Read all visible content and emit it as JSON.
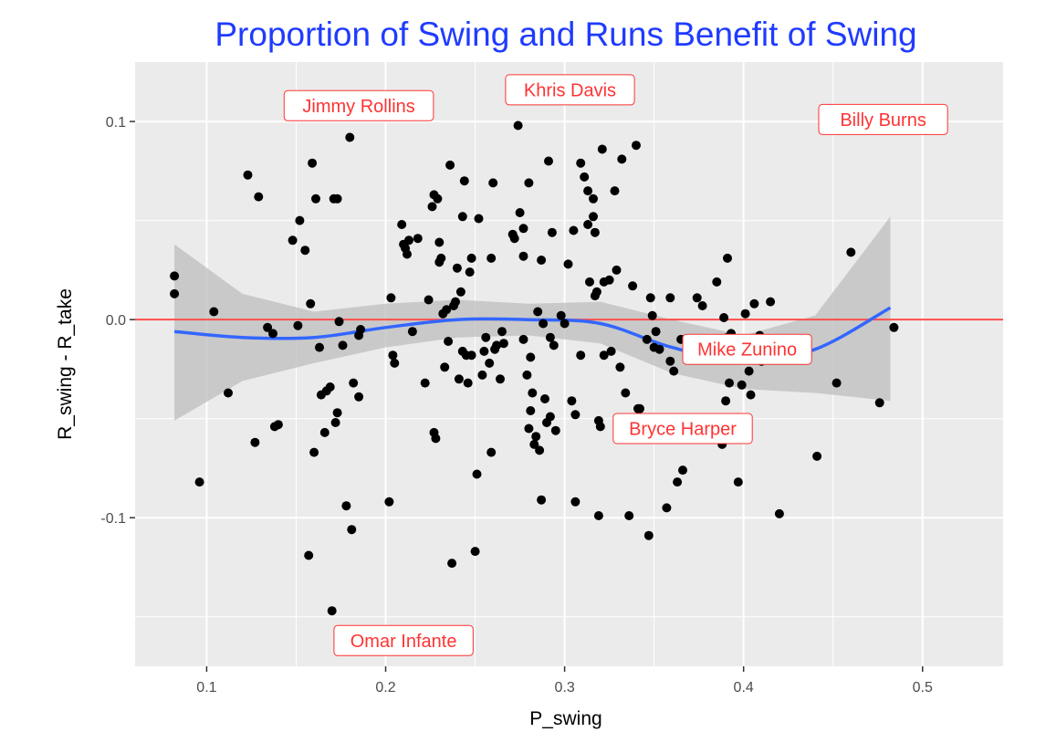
{
  "chart_data": {
    "type": "scatter",
    "title": "Proportion of Swing and Runs Benefit of Swing",
    "xlabel": "P_swing",
    "ylabel": "R_swing - R_take",
    "xlim": [
      0.06,
      0.545
    ],
    "ylim": [
      -0.175,
      0.13
    ],
    "x_ticks": [
      {
        "value": 0.1,
        "label": "0.1"
      },
      {
        "value": 0.2,
        "label": "0.2"
      },
      {
        "value": 0.3,
        "label": "0.3"
      },
      {
        "value": 0.4,
        "label": "0.4"
      },
      {
        "value": 0.5,
        "label": "0.5"
      }
    ],
    "y_ticks": [
      {
        "value": -0.1,
        "label": "-0.1"
      },
      {
        "value": 0.0,
        "label": "0.0"
      },
      {
        "value": 0.1,
        "label": "0.1"
      }
    ],
    "grid": true,
    "colors": {
      "panel": "#ebebeb",
      "grid": "#ffffff",
      "points": "#000000",
      "smooth_line": "#3366ff",
      "ribbon": "#bdbdbd",
      "reference_line": "#ff4d4d",
      "title": "#1f3bff",
      "label_text": "#ff3333",
      "label_border": "#ff3333"
    },
    "reference_line": {
      "y": 0.0
    },
    "smooth": {
      "x": [
        0.082,
        0.12,
        0.16,
        0.2,
        0.24,
        0.28,
        0.32,
        0.36,
        0.4,
        0.44,
        0.482
      ],
      "y": [
        -0.006,
        -0.009,
        -0.009,
        -0.004,
        0.0,
        0.0,
        -0.002,
        -0.014,
        -0.021,
        -0.015,
        0.006
      ],
      "lower": [
        -0.051,
        -0.031,
        -0.022,
        -0.014,
        -0.009,
        -0.008,
        -0.012,
        -0.027,
        -0.035,
        -0.037,
        -0.041
      ],
      "upper": [
        0.038,
        0.013,
        0.004,
        0.008,
        0.01,
        0.008,
        0.009,
        0.0,
        -0.008,
        0.002,
        0.052
      ]
    },
    "labels": [
      {
        "text": "Jimmy Rollins",
        "x": 0.185,
        "y": 0.108
      },
      {
        "text": "Khris Davis",
        "x": 0.303,
        "y": 0.116
      },
      {
        "text": "Billy Burns",
        "x": 0.478,
        "y": 0.101
      },
      {
        "text": "Mike Zunino",
        "x": 0.402,
        "y": -0.015
      },
      {
        "text": "Bryce Harper",
        "x": 0.366,
        "y": -0.055
      },
      {
        "text": "Omar Infante",
        "x": 0.21,
        "y": -0.162
      }
    ],
    "points": [
      [
        0.082,
        0.022
      ],
      [
        0.082,
        0.013
      ],
      [
        0.096,
        -0.082
      ],
      [
        0.104,
        0.004
      ],
      [
        0.112,
        -0.037
      ],
      [
        0.123,
        0.073
      ],
      [
        0.127,
        -0.062
      ],
      [
        0.129,
        0.062
      ],
      [
        0.134,
        -0.004
      ],
      [
        0.137,
        -0.007
      ],
      [
        0.138,
        -0.054
      ],
      [
        0.14,
        -0.053
      ],
      [
        0.148,
        0.04
      ],
      [
        0.151,
        -0.003
      ],
      [
        0.152,
        0.05
      ],
      [
        0.155,
        0.035
      ],
      [
        0.157,
        -0.119
      ],
      [
        0.158,
        0.008
      ],
      [
        0.159,
        0.079
      ],
      [
        0.16,
        -0.067
      ],
      [
        0.161,
        0.061
      ],
      [
        0.163,
        -0.014
      ],
      [
        0.164,
        -0.038
      ],
      [
        0.166,
        -0.057
      ],
      [
        0.167,
        -0.036
      ],
      [
        0.169,
        -0.034
      ],
      [
        0.17,
        -0.147
      ],
      [
        0.171,
        0.061
      ],
      [
        0.173,
        0.061
      ],
      [
        0.172,
        -0.052
      ],
      [
        0.173,
        -0.047
      ],
      [
        0.174,
        -0.001
      ],
      [
        0.176,
        -0.013
      ],
      [
        0.178,
        -0.094
      ],
      [
        0.18,
        0.092
      ],
      [
        0.181,
        -0.106
      ],
      [
        0.182,
        -0.032
      ],
      [
        0.185,
        -0.039
      ],
      [
        0.186,
        -0.005
      ],
      [
        0.185,
        -0.008
      ],
      [
        0.202,
        -0.092
      ],
      [
        0.204,
        -0.018
      ],
      [
        0.205,
        -0.022
      ],
      [
        0.203,
        0.011
      ],
      [
        0.209,
        0.048
      ],
      [
        0.21,
        0.038
      ],
      [
        0.211,
        0.036
      ],
      [
        0.212,
        0.033
      ],
      [
        0.213,
        0.04
      ],
      [
        0.215,
        -0.006
      ],
      [
        0.218,
        0.041
      ],
      [
        0.222,
        -0.032
      ],
      [
        0.224,
        0.01
      ],
      [
        0.226,
        0.057
      ],
      [
        0.227,
        0.063
      ],
      [
        0.227,
        -0.057
      ],
      [
        0.228,
        -0.06
      ],
      [
        0.229,
        0.061
      ],
      [
        0.23,
        0.039
      ],
      [
        0.23,
        0.029
      ],
      [
        0.232,
        0.003
      ],
      [
        0.231,
        0.031
      ],
      [
        0.233,
        -0.024
      ],
      [
        0.234,
        0.005
      ],
      [
        0.235,
        -0.011
      ],
      [
        0.236,
        0.078
      ],
      [
        0.237,
        -0.123
      ],
      [
        0.238,
        0.007
      ],
      [
        0.239,
        0.009
      ],
      [
        0.24,
        0.026
      ],
      [
        0.241,
        -0.03
      ],
      [
        0.242,
        0.014
      ],
      [
        0.243,
        0.052
      ],
      [
        0.243,
        -0.016
      ],
      [
        0.244,
        0.07
      ],
      [
        0.245,
        -0.018
      ],
      [
        0.246,
        -0.032
      ],
      [
        0.247,
        0.024
      ],
      [
        0.248,
        0.031
      ],
      [
        0.248,
        -0.018
      ],
      [
        0.25,
        -0.117
      ],
      [
        0.251,
        -0.078
      ],
      [
        0.252,
        0.051
      ],
      [
        0.254,
        -0.028
      ],
      [
        0.255,
        -0.016
      ],
      [
        0.256,
        -0.009
      ],
      [
        0.258,
        -0.022
      ],
      [
        0.259,
        -0.067
      ],
      [
        0.259,
        0.031
      ],
      [
        0.26,
        0.069
      ],
      [
        0.261,
        -0.015
      ],
      [
        0.262,
        -0.013
      ],
      [
        0.264,
        -0.03
      ],
      [
        0.265,
        -0.006
      ],
      [
        0.266,
        -0.012
      ],
      [
        0.271,
        0.043
      ],
      [
        0.272,
        0.041
      ],
      [
        0.274,
        0.098
      ],
      [
        0.275,
        0.054
      ],
      [
        0.277,
        0.046
      ],
      [
        0.277,
        0.032
      ],
      [
        0.277,
        -0.01
      ],
      [
        0.279,
        -0.028
      ],
      [
        0.28,
        0.069
      ],
      [
        0.28,
        -0.055
      ],
      [
        0.281,
        -0.019
      ],
      [
        0.281,
        -0.046
      ],
      [
        0.282,
        -0.037
      ],
      [
        0.283,
        -0.063
      ],
      [
        0.284,
        -0.059
      ],
      [
        0.285,
        0.004
      ],
      [
        0.286,
        -0.066
      ],
      [
        0.287,
        0.03
      ],
      [
        0.287,
        -0.091
      ],
      [
        0.288,
        -0.002
      ],
      [
        0.289,
        -0.04
      ],
      [
        0.29,
        -0.052
      ],
      [
        0.291,
        0.08
      ],
      [
        0.292,
        -0.009
      ],
      [
        0.292,
        -0.049
      ],
      [
        0.293,
        0.044
      ],
      [
        0.294,
        -0.013
      ],
      [
        0.295,
        -0.056
      ],
      [
        0.298,
        0.002
      ],
      [
        0.3,
        -0.002
      ],
      [
        0.302,
        0.028
      ],
      [
        0.304,
        -0.041
      ],
      [
        0.305,
        0.045
      ],
      [
        0.306,
        -0.092
      ],
      [
        0.306,
        -0.048
      ],
      [
        0.309,
        -0.018
      ],
      [
        0.309,
        0.079
      ],
      [
        0.311,
        0.072
      ],
      [
        0.313,
        0.065
      ],
      [
        0.313,
        0.048
      ],
      [
        0.314,
        0.019
      ],
      [
        0.316,
        0.061
      ],
      [
        0.316,
        0.052
      ],
      [
        0.317,
        0.044
      ],
      [
        0.317,
        0.012
      ],
      [
        0.318,
        0.014
      ],
      [
        0.319,
        -0.051
      ],
      [
        0.319,
        -0.099
      ],
      [
        0.32,
        -0.054
      ],
      [
        0.321,
        0.086
      ],
      [
        0.322,
        -0.018
      ],
      [
        0.322,
        0.019
      ],
      [
        0.325,
        0.02
      ],
      [
        0.326,
        -0.016
      ],
      [
        0.328,
        0.065
      ],
      [
        0.329,
        0.025
      ],
      [
        0.331,
        -0.024
      ],
      [
        0.332,
        0.081
      ],
      [
        0.334,
        -0.037
      ],
      [
        0.336,
        -0.099
      ],
      [
        0.338,
        0.017
      ],
      [
        0.34,
        0.088
      ],
      [
        0.341,
        -0.045
      ],
      [
        0.342,
        -0.045
      ],
      [
        0.346,
        -0.01
      ],
      [
        0.347,
        -0.109
      ],
      [
        0.348,
        0.011
      ],
      [
        0.349,
        0.002
      ],
      [
        0.35,
        -0.014
      ],
      [
        0.351,
        -0.006
      ],
      [
        0.353,
        -0.015
      ],
      [
        0.357,
        -0.095
      ],
      [
        0.359,
        0.011
      ],
      [
        0.359,
        -0.021
      ],
      [
        0.361,
        -0.026
      ],
      [
        0.363,
        -0.082
      ],
      [
        0.365,
        -0.01
      ],
      [
        0.366,
        -0.076
      ],
      [
        0.374,
        0.011
      ],
      [
        0.376,
        -0.018
      ],
      [
        0.377,
        0.007
      ],
      [
        0.385,
        0.019
      ],
      [
        0.388,
        -0.063
      ],
      [
        0.389,
        0.001
      ],
      [
        0.39,
        -0.041
      ],
      [
        0.391,
        -0.009
      ],
      [
        0.392,
        -0.032
      ],
      [
        0.393,
        -0.007
      ],
      [
        0.397,
        -0.082
      ],
      [
        0.399,
        -0.033
      ],
      [
        0.401,
        0.003
      ],
      [
        0.403,
        -0.026
      ],
      [
        0.404,
        -0.038
      ],
      [
        0.406,
        0.008
      ],
      [
        0.409,
        -0.008
      ],
      [
        0.41,
        -0.021
      ],
      [
        0.415,
        0.009
      ],
      [
        0.42,
        -0.098
      ],
      [
        0.441,
        -0.069
      ],
      [
        0.452,
        -0.032
      ],
      [
        0.46,
        0.034
      ],
      [
        0.476,
        -0.042
      ],
      [
        0.484,
        -0.004
      ],
      [
        0.391,
        0.031
      ]
    ]
  }
}
